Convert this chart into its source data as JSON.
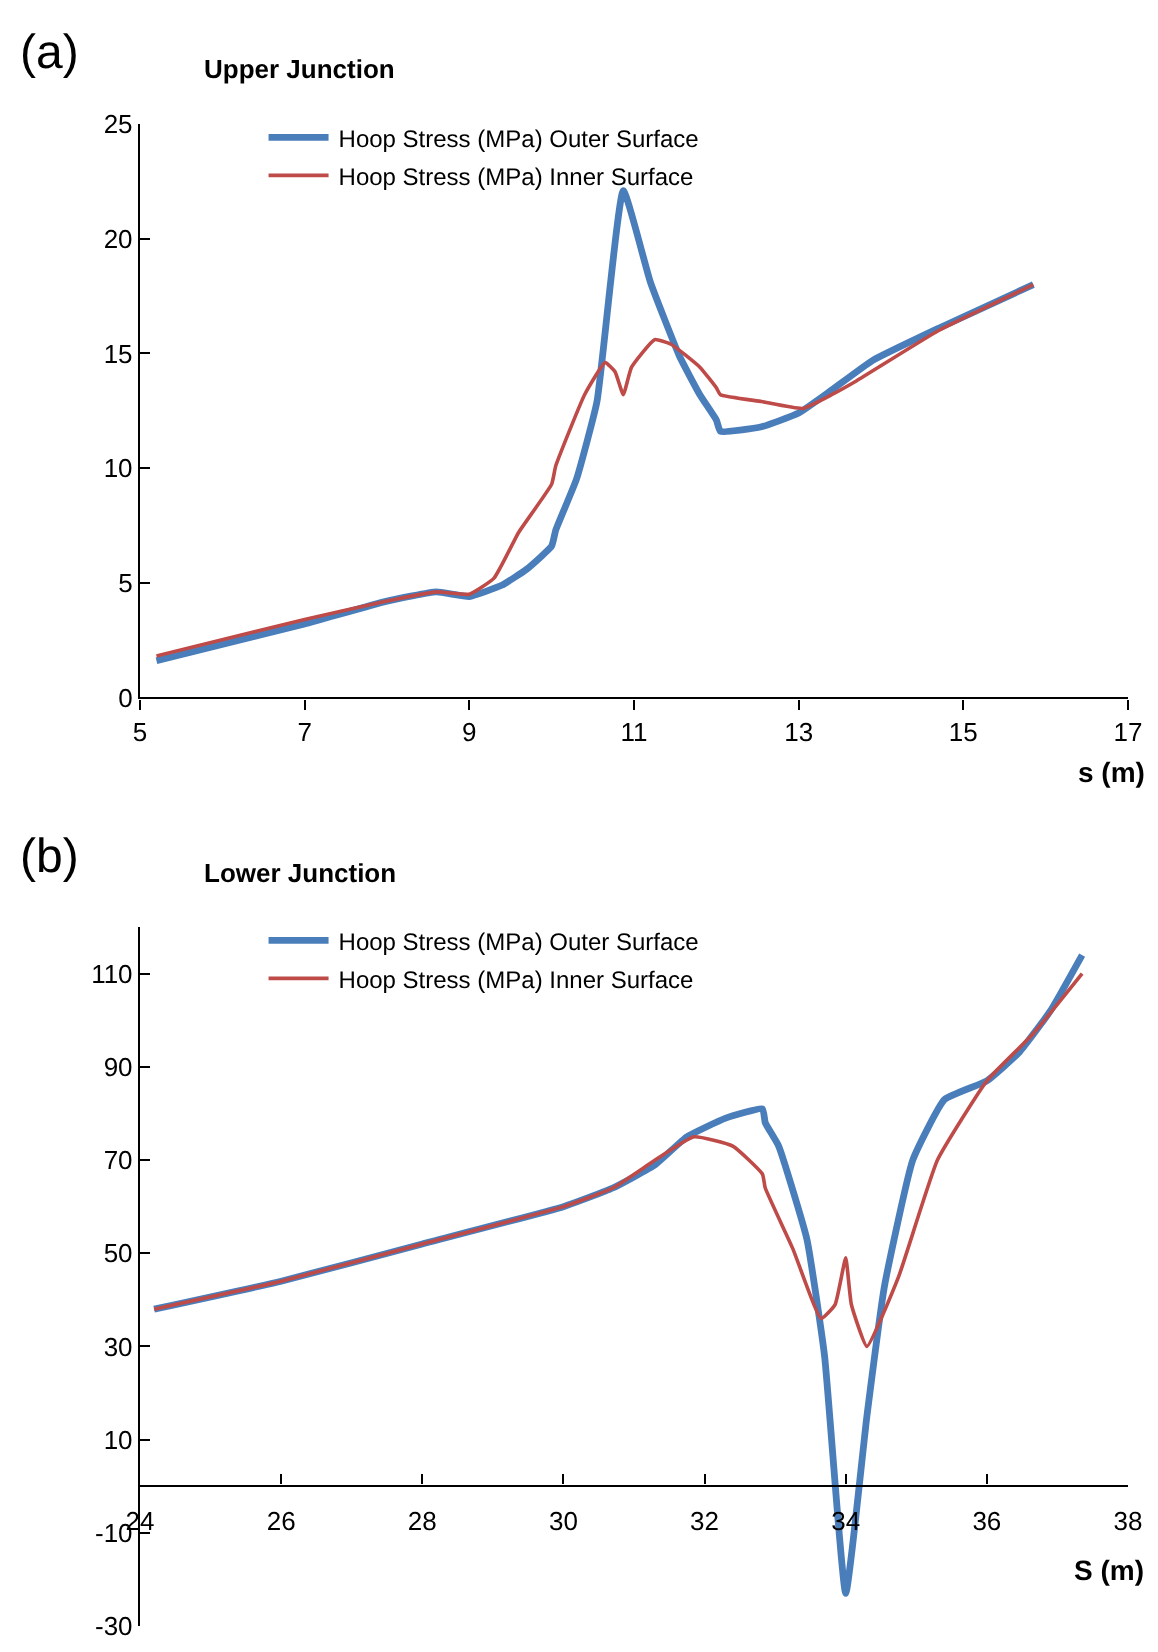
{
  "chart_data": [
    {
      "type": "line",
      "title": "Upper Junction",
      "xlabel": "s (m)",
      "annotations": [
        "(a)"
      ],
      "xlim": [
        5,
        17
      ],
      "xticks": [
        5,
        7,
        9,
        11,
        13,
        15,
        17
      ],
      "ylim": [
        0,
        25
      ],
      "yticks": [
        0,
        5,
        10,
        15,
        20,
        25
      ],
      "legend": "top left",
      "marker": "none",
      "line_style": "solid",
      "series": [
        {
          "name": "Hoop Stress (MPa) Outer Surface",
          "color": "#4a7ebb",
          "x": [
            5.2,
            7.0,
            8.0,
            8.6,
            9.0,
            9.4,
            9.7,
            10.0,
            10.05,
            10.3,
            10.55,
            10.87,
            11.2,
            11.55,
            11.8,
            12.0,
            12.05,
            12.55,
            13.0,
            13.4,
            13.9,
            14.7,
            15.85
          ],
          "values": [
            1.6,
            3.2,
            4.2,
            4.6,
            4.4,
            4.9,
            5.6,
            6.6,
            7.3,
            9.5,
            12.9,
            22.1,
            18.1,
            14.9,
            13.2,
            12.1,
            11.6,
            11.8,
            12.4,
            13.4,
            14.7,
            16.1,
            18.0
          ]
        },
        {
          "name": "Hoop Stress (MPa) Inner Surface",
          "color": "#be4b48",
          "x": [
            5.2,
            7.0,
            8.0,
            8.6,
            9.0,
            9.3,
            9.6,
            10.0,
            10.05,
            10.4,
            10.65,
            10.77,
            10.87,
            10.97,
            11.25,
            11.45,
            11.8,
            12.0,
            12.05,
            12.55,
            13.05,
            13.4,
            13.7,
            14.7,
            15.85
          ],
          "values": [
            1.8,
            3.4,
            4.2,
            4.6,
            4.5,
            5.2,
            7.2,
            9.3,
            10.1,
            13.2,
            14.6,
            14.2,
            13.2,
            14.4,
            15.6,
            15.4,
            14.4,
            13.5,
            13.2,
            12.9,
            12.6,
            13.2,
            13.8,
            16.0,
            18.0
          ]
        }
      ]
    },
    {
      "type": "line",
      "title": "Lower Junction",
      "xlabel": "S (m)",
      "annotations": [
        "(b)"
      ],
      "xlim": [
        24,
        38
      ],
      "xticks": [
        24,
        26,
        28,
        30,
        32,
        34,
        36,
        38
      ],
      "ylim": [
        -30,
        120
      ],
      "yticks": [
        -30,
        -10,
        10,
        30,
        50,
        70,
        90,
        110
      ],
      "legend": "top left",
      "marker": "none",
      "line_style": "solid",
      "series": [
        {
          "name": "Hoop Stress (MPa) Outer Surface",
          "color": "#4a7ebb",
          "x": [
            24.2,
            26.0,
            28.0,
            30.0,
            30.7,
            31.3,
            31.75,
            32.3,
            32.82,
            32.86,
            33.05,
            33.45,
            33.7,
            34.0,
            34.3,
            34.55,
            34.95,
            35.4,
            36.0,
            36.45,
            36.9,
            37.35
          ],
          "values": [
            38,
            44,
            52,
            60,
            64,
            69,
            75,
            79,
            81,
            78,
            73,
            53,
            28,
            -23,
            15,
            43,
            70,
            83,
            87,
            93,
            102,
            114
          ]
        },
        {
          "name": "Hoop Stress (MPa) Inner Surface",
          "color": "#be4b48",
          "x": [
            24.2,
            26.0,
            28.0,
            30.0,
            30.7,
            31.3,
            31.85,
            32.4,
            32.82,
            32.86,
            33.25,
            33.65,
            33.85,
            34.0,
            34.08,
            34.3,
            34.75,
            35.3,
            36.0,
            36.65,
            37.35
          ],
          "values": [
            38,
            44,
            52,
            60,
            64,
            70,
            75,
            73,
            67,
            64,
            51,
            36,
            39,
            49,
            39,
            30,
            45,
            70,
            87,
            97,
            110
          ]
        }
      ]
    }
  ]
}
